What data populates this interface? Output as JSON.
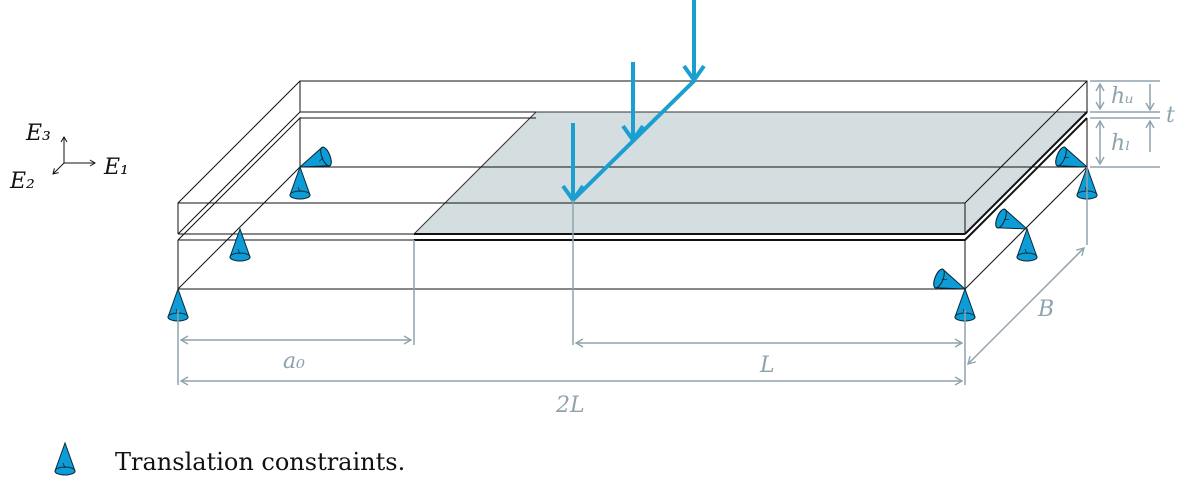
{
  "diagram": {
    "axes": {
      "e3": "E₃",
      "e1": "E₁",
      "e2": "E₂"
    },
    "dims": {
      "hu": "hᵤ",
      "hl": "hₗ",
      "t": "t",
      "a0": "a₀",
      "L": "L",
      "twoL": "2L",
      "B": "B"
    },
    "legend": {
      "text": "Translation constraints."
    },
    "colors": {
      "load": "#1a9fd0",
      "support": "#0e9cd6",
      "dim": "#8fa3ad",
      "crack": "#d4dde0",
      "edge": "#111111"
    }
  }
}
